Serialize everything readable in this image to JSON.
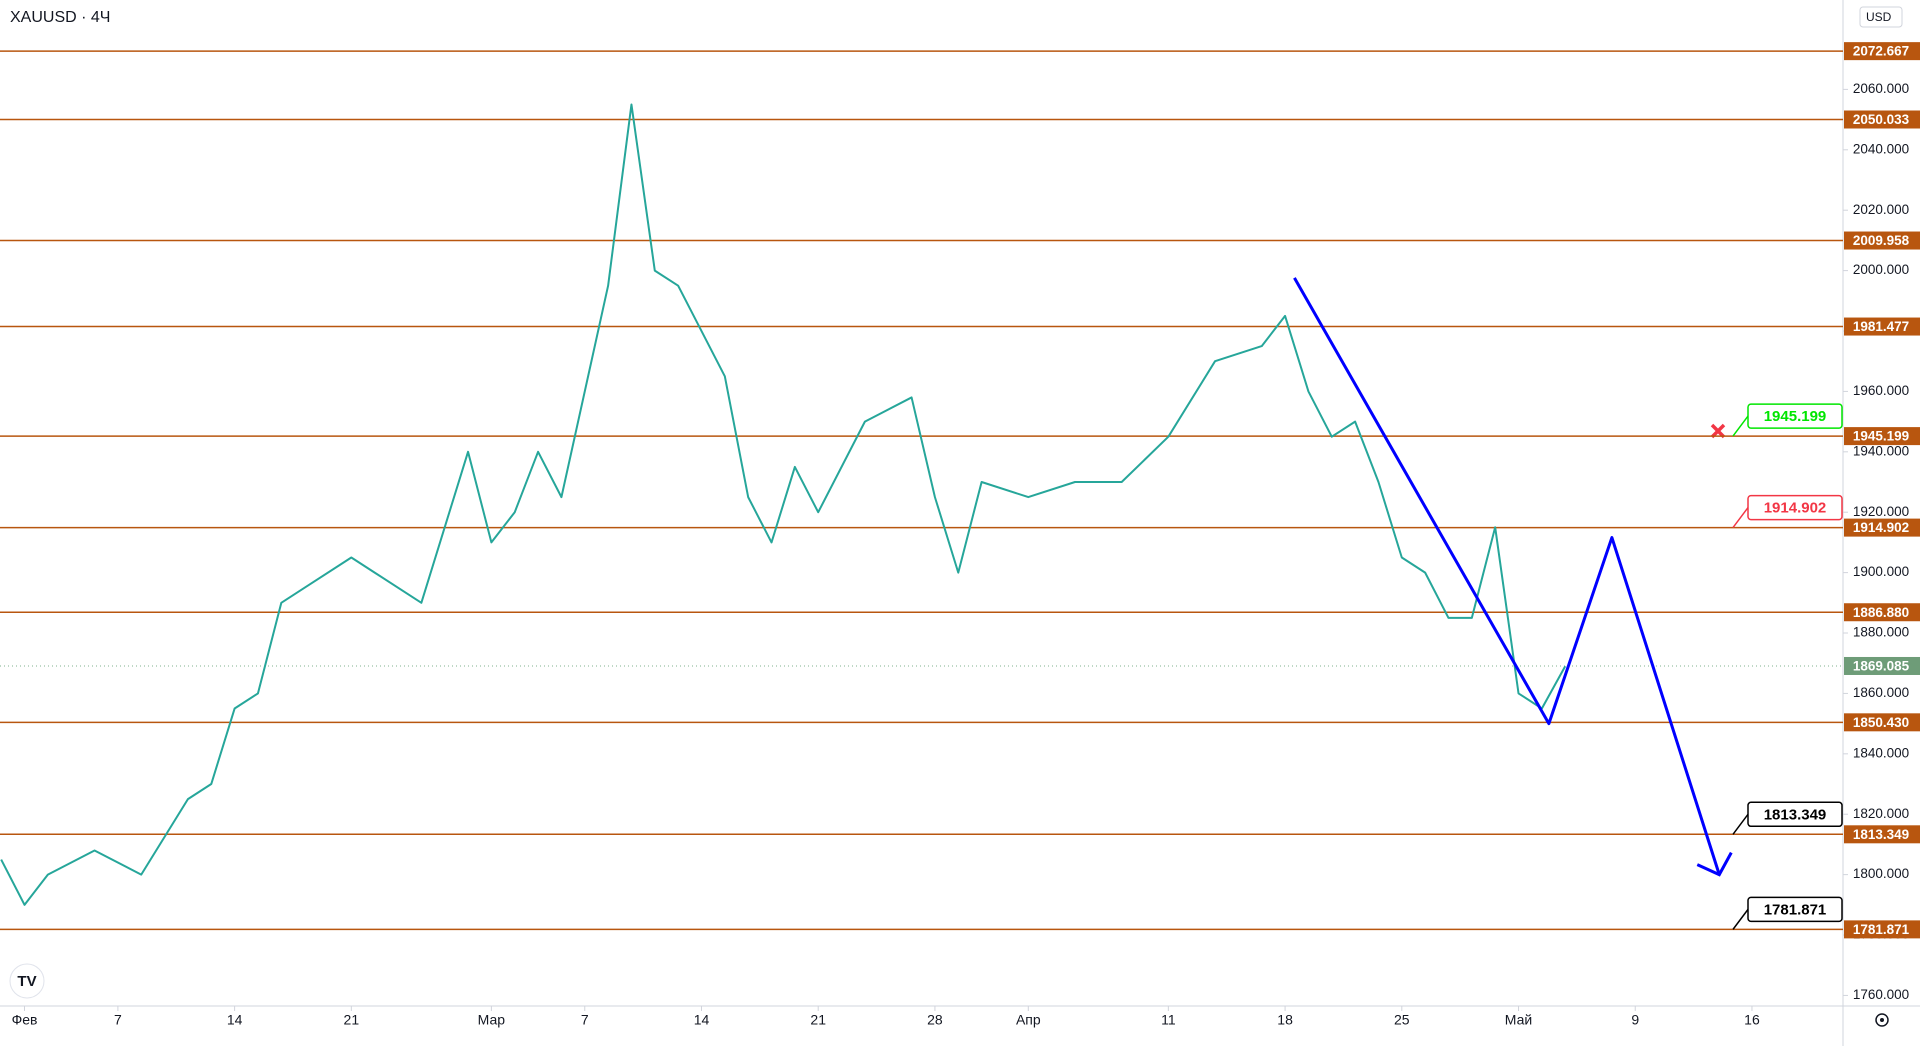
{
  "chart_data": {
    "type": "line",
    "title": "XAUUSD · 4Ч",
    "currency": "USD",
    "xlim": [
      -1.05,
      77.9
    ],
    "ylim": [
      1756.5,
      2089.6
    ],
    "xticks": [
      {
        "value": 0,
        "label": "Фев"
      },
      {
        "value": 4,
        "label": "7"
      },
      {
        "value": 9,
        "label": "14"
      },
      {
        "value": 14,
        "label": "21"
      },
      {
        "value": 20,
        "label": "Мар"
      },
      {
        "value": 24,
        "label": "7"
      },
      {
        "value": 29,
        "label": "14"
      },
      {
        "value": 34,
        "label": "21"
      },
      {
        "value": 39,
        "label": "28"
      },
      {
        "value": 43,
        "label": "Апр"
      },
      {
        "value": 49,
        "label": "11"
      },
      {
        "value": 54,
        "label": "18"
      },
      {
        "value": 59,
        "label": "25"
      },
      {
        "value": 64,
        "label": "Май"
      },
      {
        "value": 69,
        "label": "9"
      },
      {
        "value": 74,
        "label": "16"
      }
    ],
    "yticks": [
      {
        "value": 1760,
        "label": "1760.000"
      },
      {
        "value": 1780,
        "label": "1780.000"
      },
      {
        "value": 1800,
        "label": "1800.000"
      },
      {
        "value": 1820,
        "label": "1820.000"
      },
      {
        "value": 1840,
        "label": "1840.000"
      },
      {
        "value": 1860,
        "label": "1860.000"
      },
      {
        "value": 1880,
        "label": "1880.000"
      },
      {
        "value": 1900,
        "label": "1900.000"
      },
      {
        "value": 1920,
        "label": "1920.000"
      },
      {
        "value": 1940,
        "label": "1940.000"
      },
      {
        "value": 1960,
        "label": "1960.000"
      },
      {
        "value": 1980,
        "label": "1980.000"
      },
      {
        "value": 2000,
        "label": "2000.000"
      },
      {
        "value": 2020,
        "label": "2020.000"
      },
      {
        "value": 2040,
        "label": "2040.000"
      },
      {
        "value": 2060,
        "label": "2060.000"
      }
    ],
    "series": [
      {
        "color": "#26a69a",
        "x": [
          -1,
          0,
          1,
          3,
          5,
          7,
          8,
          9,
          10,
          11,
          12,
          14,
          15,
          17,
          19,
          20,
          21,
          22,
          23,
          25,
          26,
          27,
          28,
          30,
          31,
          32,
          33,
          34,
          36,
          38,
          39,
          40,
          41,
          43,
          45,
          47,
          49,
          51,
          53,
          54,
          55,
          56,
          57,
          58,
          59,
          60,
          61,
          62,
          63,
          64,
          65,
          66
        ],
        "values": [
          1805,
          1790,
          1800,
          1808,
          1800,
          1825,
          1830,
          1855,
          1860,
          1890,
          1895,
          1905,
          1900,
          1890,
          1940,
          1910,
          1920,
          1940,
          1925,
          1995,
          2055,
          2000,
          1995,
          1965,
          1925,
          1910,
          1935,
          1920,
          1950,
          1958,
          1925,
          1900,
          1930,
          1925,
          1930,
          1930,
          1945,
          1970,
          1975,
          1985,
          1960,
          1945,
          1950,
          1930,
          1905,
          1900,
          1885,
          1885,
          1915,
          1860,
          1855,
          1869
        ]
      },
      {
        "color": "#0000ff",
        "x": [
          54.4,
          65.3,
          68.0,
          72.6
        ],
        "values": [
          1997.6,
          1850,
          1911.6,
          1800
        ]
      }
    ],
    "levels": [
      {
        "value": 2072.667,
        "label": "2072.667"
      },
      {
        "value": 2050.033,
        "label": "2050.033"
      },
      {
        "value": 2009.958,
        "label": "2009.958"
      },
      {
        "value": 1981.477,
        "label": "1981.477"
      },
      {
        "value": 1945.199,
        "label": "1945.199"
      },
      {
        "value": 1914.902,
        "label": "1914.902"
      },
      {
        "value": 1886.88,
        "label": "1886.880"
      },
      {
        "value": 1850.43,
        "label": "1850.430"
      },
      {
        "value": 1813.349,
        "label": "1813.349"
      },
      {
        "value": 1781.871,
        "label": "1781.871"
      }
    ],
    "level_color": "#b8560f",
    "last_price": {
      "value": 1869.085,
      "label": "1869.085"
    },
    "callouts": [
      {
        "value": 1945.199,
        "label": "1945.199",
        "color": "#00e600"
      },
      {
        "value": 1914.902,
        "label": "1914.902",
        "color": "#f23645"
      },
      {
        "value": 1813.349,
        "label": "1813.349",
        "color": "#000000"
      },
      {
        "value": 1781.871,
        "label": "1781.871",
        "color": "#000000"
      }
    ]
  }
}
